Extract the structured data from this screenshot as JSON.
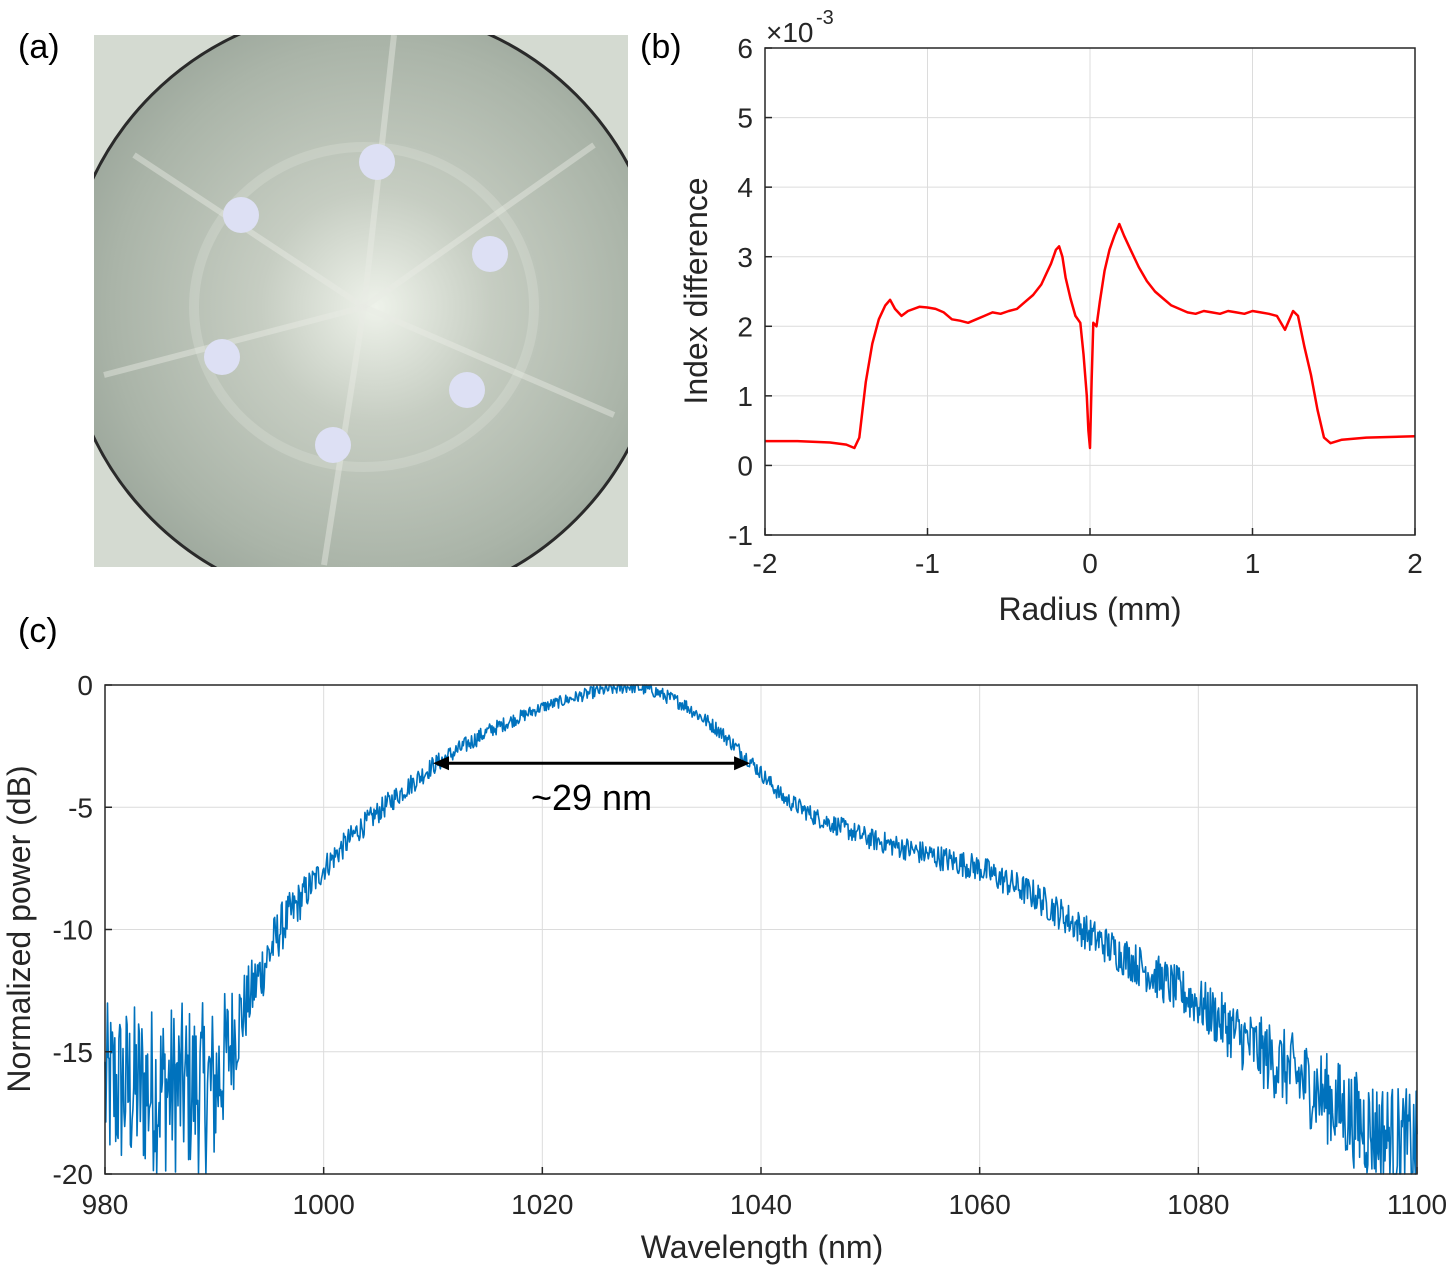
{
  "labels": {
    "a": "(a)",
    "b": "(b)",
    "c": "(c)"
  },
  "colors": {
    "red_series": "#ff0000",
    "blue_series": "#0072bd",
    "grid": "#dcdcdc",
    "micro_bg": "#c9cfc6",
    "micro_dot": "#dde0f4"
  },
  "micrograph": {
    "icon": "fiber-cross-section-image",
    "description_visible": false,
    "dot_count": 6
  },
  "chart_data": [
    {
      "id": "b",
      "type": "line",
      "xlabel": "Radius (mm)",
      "ylabel": "Index difference",
      "y_multiplier_base": "×10",
      "y_multiplier_exp": "-3",
      "xlim": [
        -2,
        2
      ],
      "ylim": [
        -1,
        6
      ],
      "xticks": [
        -2,
        -1,
        0,
        1,
        2
      ],
      "yticks": [
        -1,
        0,
        1,
        2,
        3,
        4,
        5,
        6
      ],
      "grid": true,
      "series": [
        {
          "color": "#ff0000",
          "x": [
            -2.0,
            -1.8,
            -1.6,
            -1.5,
            -1.45,
            -1.42,
            -1.38,
            -1.34,
            -1.3,
            -1.26,
            -1.23,
            -1.2,
            -1.16,
            -1.12,
            -1.05,
            -1.0,
            -0.95,
            -0.9,
            -0.85,
            -0.8,
            -0.75,
            -0.7,
            -0.65,
            -0.6,
            -0.55,
            -0.5,
            -0.45,
            -0.4,
            -0.35,
            -0.3,
            -0.27,
            -0.24,
            -0.21,
            -0.19,
            -0.17,
            -0.15,
            -0.12,
            -0.09,
            -0.06,
            -0.04,
            -0.02,
            -0.01,
            0.0,
            0.01,
            0.02,
            0.04,
            0.06,
            0.09,
            0.12,
            0.15,
            0.18,
            0.21,
            0.25,
            0.3,
            0.35,
            0.4,
            0.45,
            0.5,
            0.55,
            0.6,
            0.65,
            0.7,
            0.75,
            0.8,
            0.85,
            0.9,
            0.95,
            1.0,
            1.05,
            1.1,
            1.15,
            1.2,
            1.25,
            1.28,
            1.32,
            1.36,
            1.4,
            1.44,
            1.48,
            1.55,
            1.7,
            2.0
          ],
          "y": [
            0.35,
            0.35,
            0.33,
            0.3,
            0.25,
            0.4,
            1.2,
            1.75,
            2.1,
            2.3,
            2.38,
            2.25,
            2.15,
            2.22,
            2.28,
            2.27,
            2.25,
            2.2,
            2.1,
            2.08,
            2.05,
            2.1,
            2.15,
            2.2,
            2.18,
            2.22,
            2.25,
            2.35,
            2.45,
            2.6,
            2.75,
            2.9,
            3.1,
            3.15,
            3.0,
            2.7,
            2.4,
            2.15,
            2.05,
            1.6,
            1.0,
            0.5,
            0.25,
            1.2,
            2.05,
            2.0,
            2.35,
            2.8,
            3.1,
            3.3,
            3.47,
            3.3,
            3.1,
            2.85,
            2.65,
            2.5,
            2.4,
            2.3,
            2.25,
            2.2,
            2.18,
            2.22,
            2.2,
            2.18,
            2.22,
            2.2,
            2.18,
            2.22,
            2.2,
            2.18,
            2.15,
            1.95,
            2.22,
            2.15,
            1.7,
            1.3,
            0.8,
            0.4,
            0.32,
            0.37,
            0.4,
            0.42
          ]
        }
      ]
    },
    {
      "id": "c",
      "type": "line",
      "xlabel": "Wavelength (nm)",
      "ylabel": "Normalized power (dB)",
      "xlim": [
        980,
        1100
      ],
      "ylim": [
        -20,
        0
      ],
      "xticks": [
        980,
        1000,
        1020,
        1040,
        1060,
        1080,
        1100
      ],
      "yticks": [
        -20,
        -15,
        -10,
        -5,
        0
      ],
      "grid": true,
      "annotation": {
        "text": "~29 nm",
        "x_start": 1010,
        "x_end": 1039,
        "y": -3.2
      },
      "series": [
        {
          "color": "#0072bd",
          "envelope_x": [
            980,
            985,
            990,
            992,
            994,
            996,
            998,
            1000,
            1003,
            1006,
            1010,
            1015,
            1020,
            1025,
            1028,
            1030,
            1033,
            1036,
            1039,
            1042,
            1045,
            1050,
            1055,
            1060,
            1065,
            1070,
            1075,
            1080,
            1085,
            1090,
            1095,
            1100
          ],
          "envelope_y": [
            -16.5,
            -16.5,
            -16.5,
            -14.0,
            -12.0,
            -10.0,
            -8.7,
            -7.5,
            -6.0,
            -4.8,
            -3.3,
            -1.9,
            -0.9,
            -0.25,
            -0.05,
            -0.2,
            -0.8,
            -1.8,
            -3.1,
            -4.6,
            -5.4,
            -6.3,
            -6.9,
            -7.5,
            -8.6,
            -10.2,
            -11.6,
            -13.0,
            -14.8,
            -16.3,
            -18.0,
            -19.0
          ],
          "noise_profile_x": [
            980,
            990,
            993,
            1000,
            1020,
            1040,
            1060,
            1070,
            1080,
            1090,
            1100
          ],
          "noise_profile_amp": [
            2.2,
            2.2,
            0.9,
            0.35,
            0.15,
            0.2,
            0.35,
            0.45,
            0.65,
            1.1,
            1.5
          ],
          "sample_count": 1600
        }
      ]
    }
  ]
}
